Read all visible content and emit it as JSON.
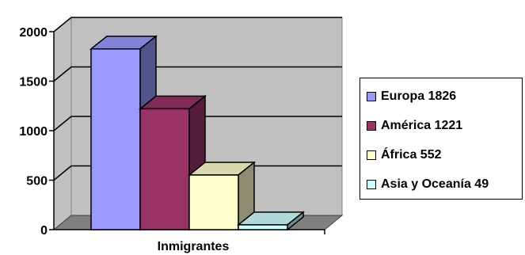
{
  "chart_data": {
    "type": "bar",
    "style": "3d-clustered",
    "categories": [
      "Inmigrantes"
    ],
    "xlabel": "Inmigrantes",
    "ylabel": "",
    "ylim": [
      0,
      2000
    ],
    "yticks": [
      "0",
      "500",
      "1000",
      "1500",
      "2000"
    ],
    "grid": true,
    "legend_position": "right",
    "series": [
      {
        "name": "Europa 1826",
        "values": [
          1826
        ],
        "color": "#9999ff"
      },
      {
        "name": "América 1221",
        "values": [
          1221
        ],
        "color": "#993366"
      },
      {
        "name": "África 552",
        "values": [
          552
        ],
        "color": "#ffffcc"
      },
      {
        "name": "Asia y Oceanía 49",
        "values": [
          49
        ],
        "color": "#ccffff"
      }
    ]
  }
}
